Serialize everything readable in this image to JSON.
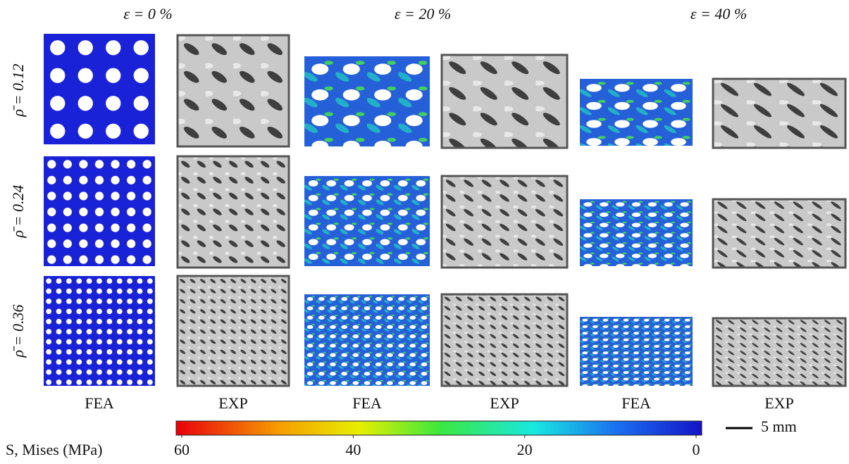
{
  "column_headers": [
    "ε = 0 %",
    "ε = 20 %",
    "ε = 40 %"
  ],
  "row_labels": [
    "ρ̄ = 0.12",
    "ρ̄ = 0.24",
    "ρ̄ = 0.36"
  ],
  "column_labels": [
    "FEA",
    "EXP",
    "FEA",
    "EXP",
    "FEA",
    "EXP"
  ],
  "colorbar": {
    "label": "S, Mises (MPa)",
    "range": [
      60,
      0
    ],
    "ticks": [
      60,
      40,
      20,
      0
    ]
  },
  "scale_bar": "5 mm"
}
